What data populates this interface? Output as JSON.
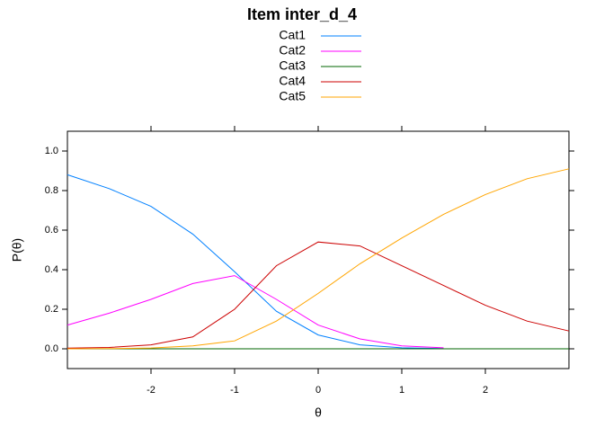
{
  "chart_data": {
    "type": "line",
    "title": "Item inter_d_4",
    "x_label": "θ",
    "y_label": "P(θ)",
    "x": [
      -3,
      -2.5,
      -2,
      -1.5,
      -1,
      -0.5,
      0,
      0.5,
      1,
      1.5,
      2,
      2.5,
      3
    ],
    "series": [
      {
        "name": "Cat1",
        "color": "#0080ff",
        "values": [
          0.88,
          0.81,
          0.72,
          0.58,
          0.39,
          0.19,
          0.07,
          0.02,
          0.005,
          0.001,
          null,
          null,
          null
        ]
      },
      {
        "name": "Cat2",
        "color": "#ff00ff",
        "values": [
          0.12,
          0.18,
          0.25,
          0.33,
          0.37,
          0.25,
          0.12,
          0.05,
          0.015,
          0.005,
          null,
          null,
          null
        ]
      },
      {
        "name": "Cat3",
        "color": "#006400",
        "values": [
          0,
          0,
          0,
          0,
          0,
          0,
          0,
          0,
          0,
          0,
          0,
          0,
          0
        ]
      },
      {
        "name": "Cat4",
        "color": "#cc0000",
        "values": [
          0.003,
          0.007,
          0.02,
          0.06,
          0.2,
          0.42,
          0.54,
          0.52,
          0.42,
          0.32,
          0.22,
          0.14,
          0.09
        ]
      },
      {
        "name": "Cat5",
        "color": "#ffa500",
        "values": [
          0,
          0.001,
          0.004,
          0.015,
          0.04,
          0.14,
          0.28,
          0.43,
          0.56,
          0.68,
          0.78,
          0.86,
          0.91
        ]
      }
    ],
    "xlim": [
      -3,
      3
    ],
    "xticks": [
      -2,
      -1,
      0,
      1,
      2
    ],
    "ylim": [
      -0.1,
      1.1
    ],
    "yticks": [
      {
        "value": 0,
        "label": "0.0"
      },
      0.2,
      0.4,
      0.6,
      0.8,
      {
        "value": 1,
        "label": "1.0"
      }
    ]
  }
}
